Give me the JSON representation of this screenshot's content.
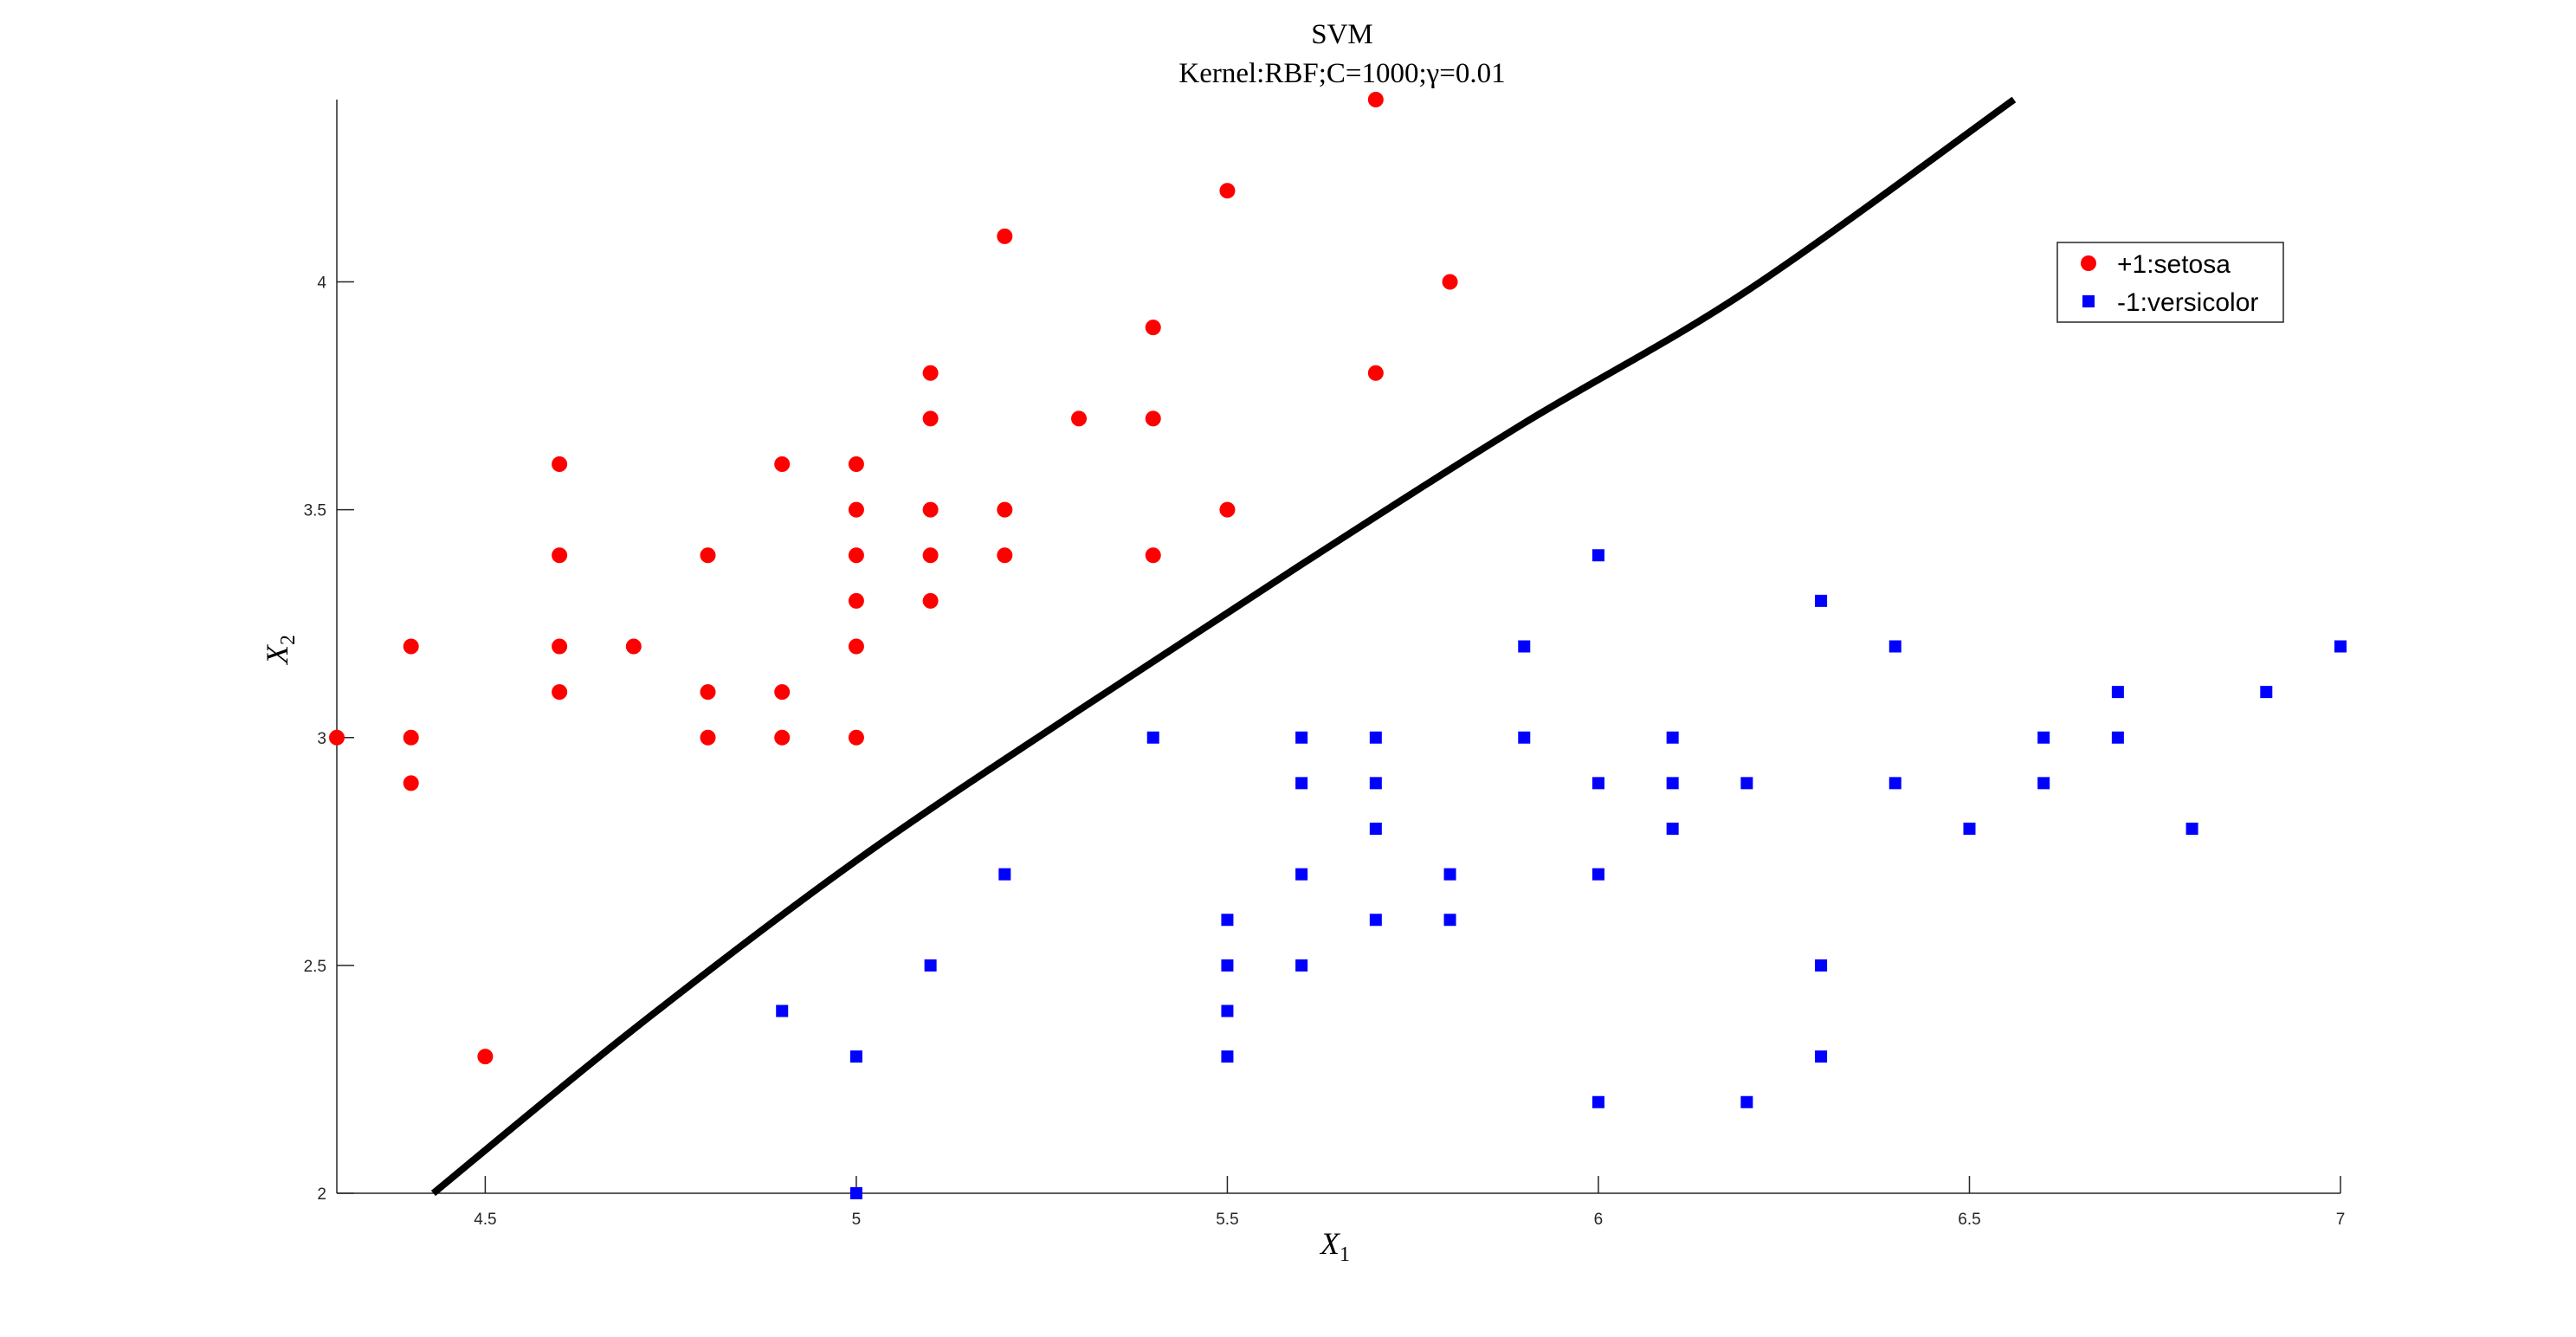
{
  "chart_data": {
    "type": "scatter",
    "title": "SVM",
    "subtitle": "Kernel:RBF;C=1000;γ=0.01",
    "xlabel": {
      "base": "X",
      "sub": "1"
    },
    "ylabel": {
      "base": "X",
      "sub": "2"
    },
    "xlim": [
      4.3,
      7.0
    ],
    "ylim": [
      2.0,
      4.4
    ],
    "xticks": [
      "4.5",
      "5",
      "5.5",
      "6",
      "6.5",
      "7"
    ],
    "yticks": [
      "2",
      "2.5",
      "3",
      "3.5",
      "4"
    ],
    "legend_position": "top-right",
    "series": [
      {
        "name": "+1:setosa",
        "marker": "circle",
        "color": "#ff0000",
        "points": [
          [
            4.3,
            3.0
          ],
          [
            4.4,
            3.2
          ],
          [
            4.4,
            3.0
          ],
          [
            4.4,
            2.9
          ],
          [
            4.5,
            2.3
          ],
          [
            4.6,
            3.6
          ],
          [
            4.6,
            3.4
          ],
          [
            4.6,
            3.2
          ],
          [
            4.6,
            3.1
          ],
          [
            4.7,
            3.2
          ],
          [
            4.8,
            3.4
          ],
          [
            4.8,
            3.1
          ],
          [
            4.8,
            3.0
          ],
          [
            4.9,
            3.6
          ],
          [
            4.9,
            3.1
          ],
          [
            4.9,
            3.0
          ],
          [
            5.0,
            3.6
          ],
          [
            5.0,
            3.5
          ],
          [
            5.0,
            3.4
          ],
          [
            5.0,
            3.3
          ],
          [
            5.0,
            3.2
          ],
          [
            5.0,
            3.0
          ],
          [
            5.1,
            3.8
          ],
          [
            5.1,
            3.7
          ],
          [
            5.1,
            3.5
          ],
          [
            5.1,
            3.4
          ],
          [
            5.1,
            3.3
          ],
          [
            5.2,
            4.1
          ],
          [
            5.2,
            3.5
          ],
          [
            5.2,
            3.4
          ],
          [
            5.3,
            3.7
          ],
          [
            5.4,
            3.9
          ],
          [
            5.4,
            3.7
          ],
          [
            5.4,
            3.4
          ],
          [
            5.5,
            4.2
          ],
          [
            5.5,
            3.5
          ],
          [
            5.7,
            4.4
          ],
          [
            5.7,
            3.8
          ],
          [
            5.8,
            4.0
          ]
        ]
      },
      {
        "name": "-1:versicolor",
        "marker": "square",
        "color": "#0000ff",
        "points": [
          [
            4.9,
            2.4
          ],
          [
            5.0,
            2.3
          ],
          [
            5.0,
            2.0
          ],
          [
            5.1,
            2.5
          ],
          [
            5.2,
            2.7
          ],
          [
            5.4,
            3.0
          ],
          [
            5.5,
            2.6
          ],
          [
            5.5,
            2.5
          ],
          [
            5.5,
            2.4
          ],
          [
            5.5,
            2.3
          ],
          [
            5.6,
            3.0
          ],
          [
            5.6,
            2.9
          ],
          [
            5.6,
            2.7
          ],
          [
            5.6,
            2.5
          ],
          [
            5.7,
            3.0
          ],
          [
            5.7,
            2.9
          ],
          [
            5.7,
            2.8
          ],
          [
            5.7,
            2.6
          ],
          [
            5.8,
            2.7
          ],
          [
            5.8,
            2.6
          ],
          [
            5.9,
            3.2
          ],
          [
            5.9,
            3.0
          ],
          [
            6.0,
            3.4
          ],
          [
            6.0,
            2.9
          ],
          [
            6.0,
            2.7
          ],
          [
            6.0,
            2.2
          ],
          [
            6.1,
            3.0
          ],
          [
            6.1,
            2.9
          ],
          [
            6.1,
            2.8
          ],
          [
            6.2,
            2.9
          ],
          [
            6.2,
            2.2
          ],
          [
            6.3,
            3.3
          ],
          [
            6.3,
            2.5
          ],
          [
            6.3,
            2.3
          ],
          [
            6.4,
            3.2
          ],
          [
            6.4,
            2.9
          ],
          [
            6.5,
            2.8
          ],
          [
            6.6,
            3.0
          ],
          [
            6.6,
            2.9
          ],
          [
            6.7,
            3.1
          ],
          [
            6.7,
            3.0
          ],
          [
            6.8,
            2.8
          ],
          [
            6.9,
            3.1
          ],
          [
            7.0,
            3.2
          ]
        ]
      }
    ],
    "decision_boundary": {
      "color": "#000000",
      "points": [
        [
          4.43,
          2.0
        ],
        [
          4.7,
          2.36
        ],
        [
          5.0,
          2.73
        ],
        [
          5.3,
          3.06
        ],
        [
          5.6,
          3.38
        ],
        [
          5.9,
          3.69
        ],
        [
          6.2,
          3.98
        ],
        [
          6.56,
          4.4
        ]
      ]
    }
  }
}
